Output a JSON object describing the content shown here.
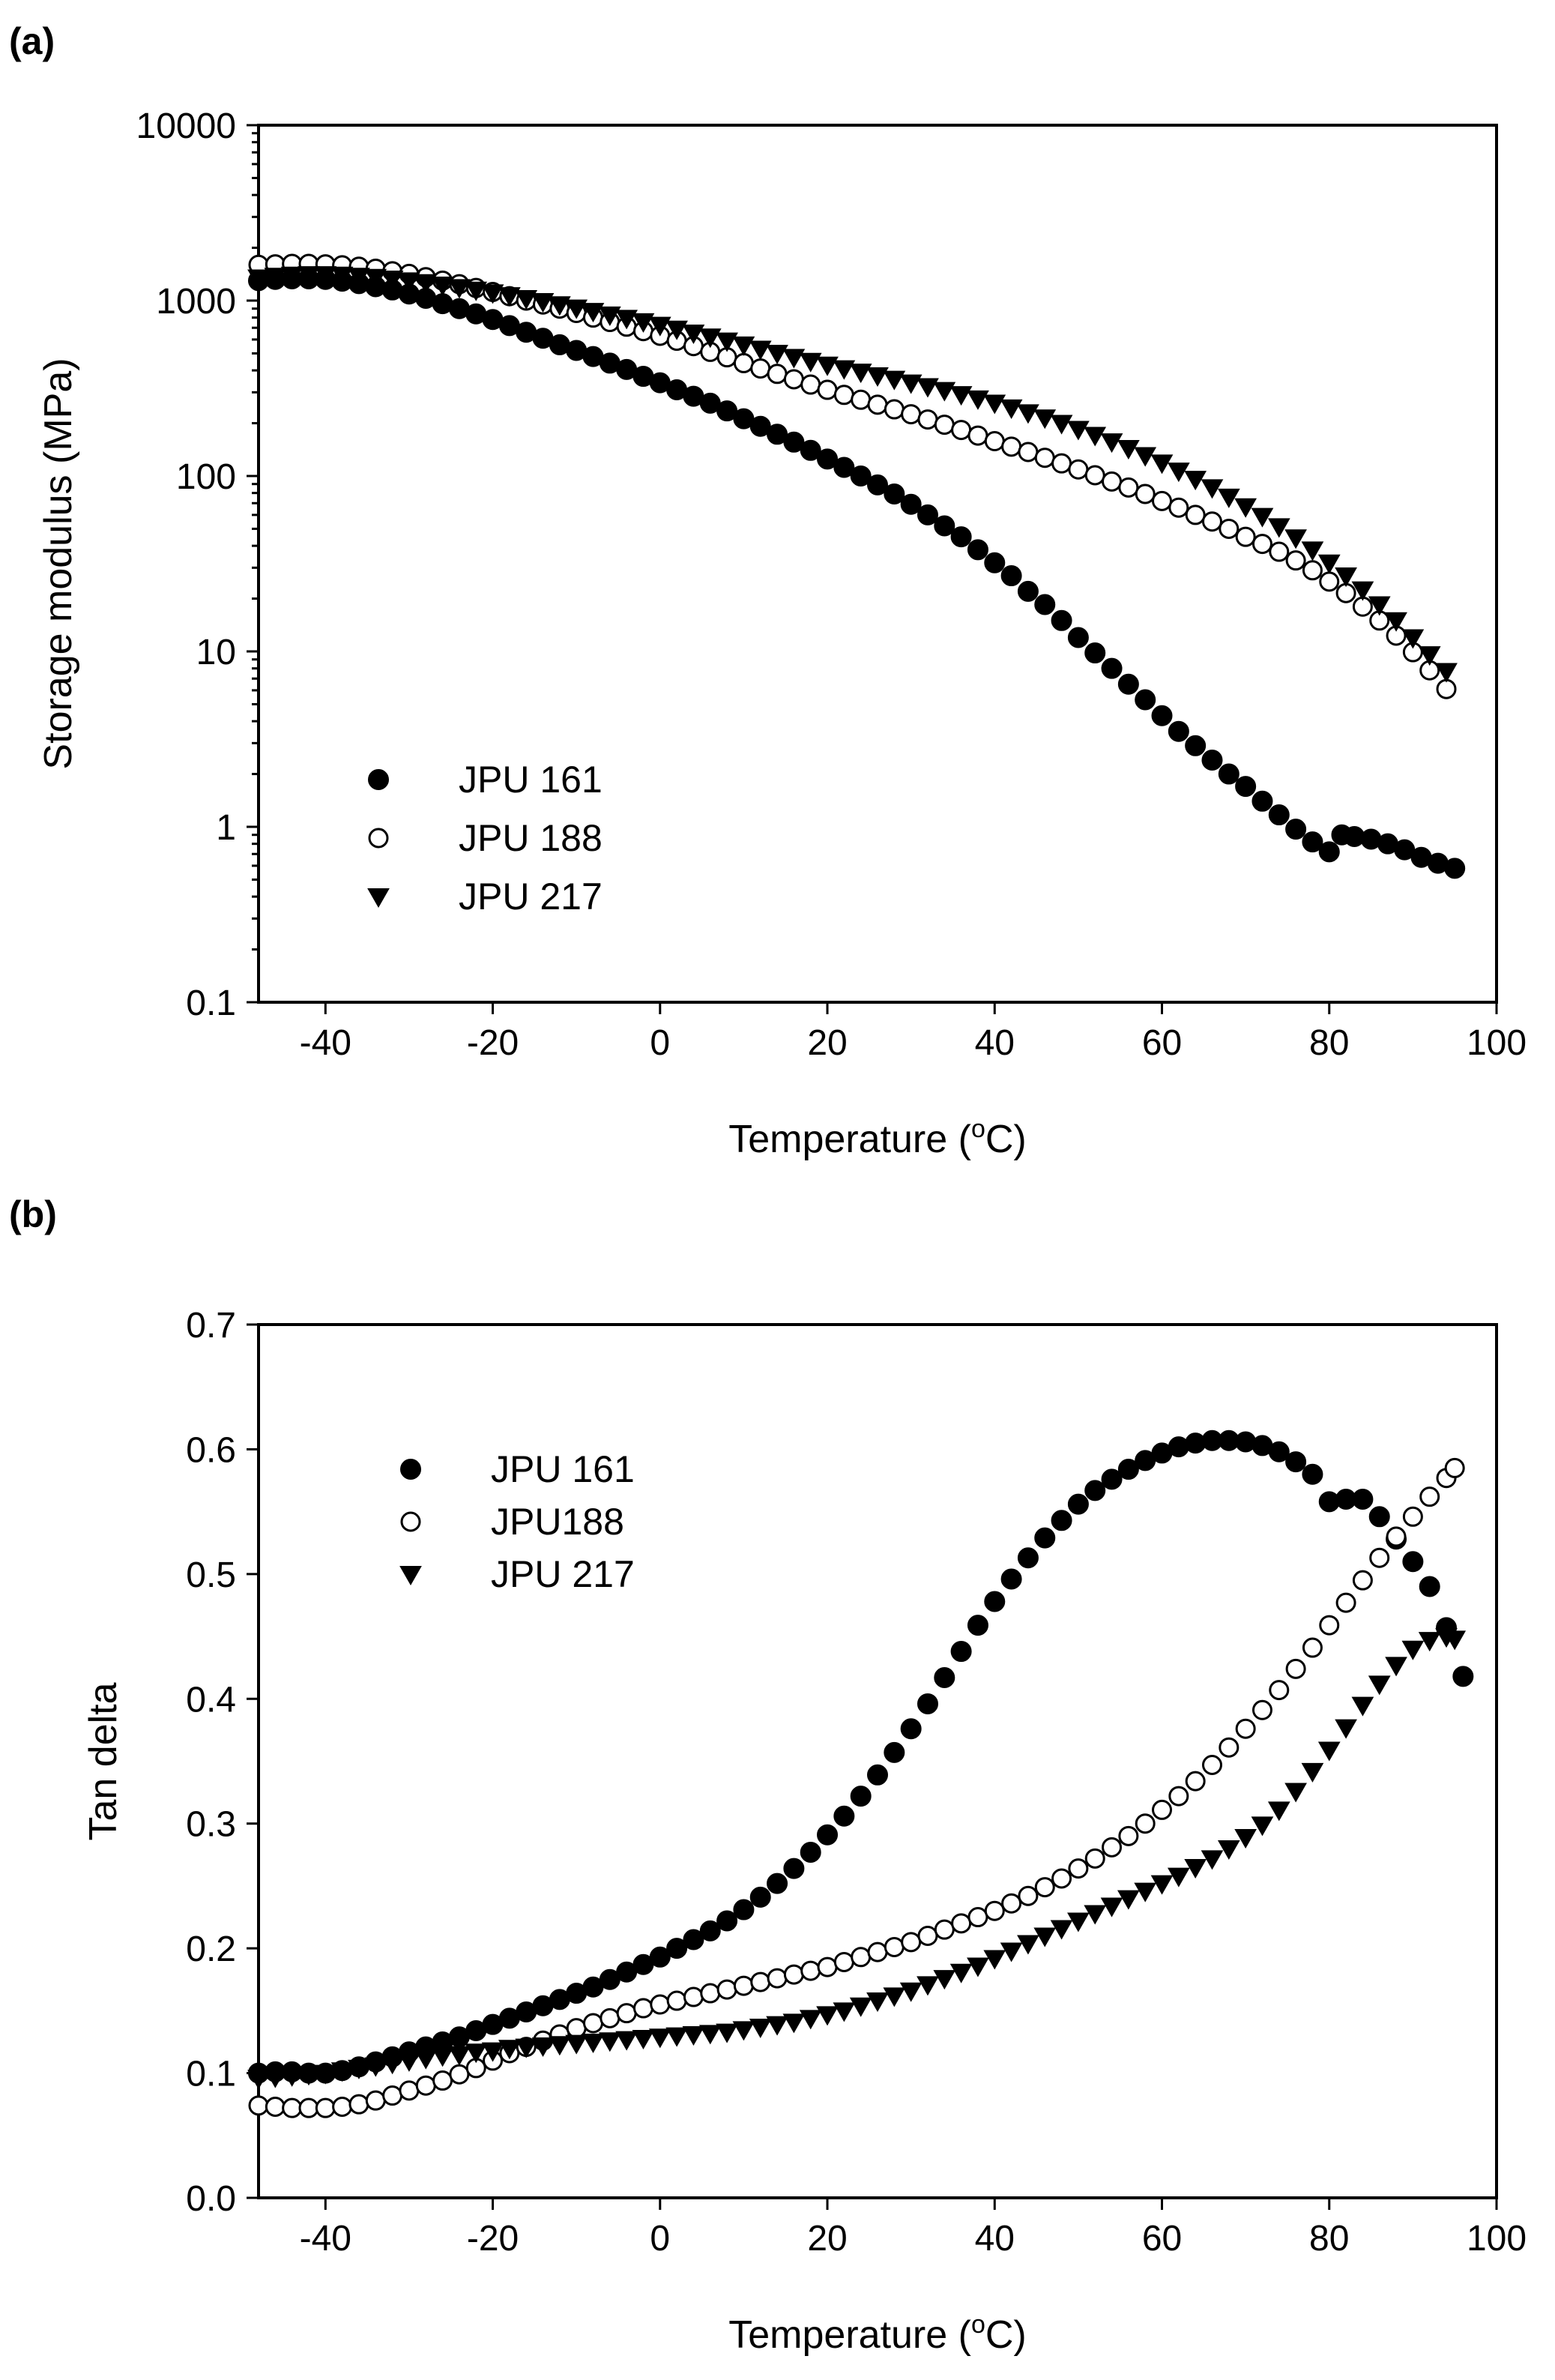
{
  "chart_data": [
    {
      "panel_label": "(a)",
      "type": "scatter",
      "title": "",
      "xlabel": "Temperature (",
      "xlabel_unit_sup": "o",
      "xlabel_unit_end": "C)",
      "ylabel": "Storage modulus (MPa)",
      "yscale": "log",
      "xlim": [
        -48,
        100
      ],
      "ylim": [
        0.1,
        10000
      ],
      "xticks": [
        -40,
        -20,
        0,
        20,
        40,
        60,
        80,
        100
      ],
      "xtick_labels": [
        "-40",
        "-20",
        "0",
        "20",
        "40",
        "60",
        "80",
        "100"
      ],
      "yticks": [
        0.1,
        1,
        10,
        100,
        1000,
        10000
      ],
      "ytick_labels": [
        "0.1",
        "1",
        "10",
        "100",
        "1000",
        "10000"
      ],
      "legend_position": "bottom-left",
      "series": [
        {
          "name": "JPU 161",
          "marker": "filled-circle",
          "x": [
            -48,
            -46,
            -44,
            -42,
            -40,
            -38,
            -36,
            -34,
            -32,
            -30,
            -28,
            -26,
            -24,
            -22,
            -20,
            -18,
            -16,
            -14,
            -12,
            -10,
            -8,
            -6,
            -4,
            -2,
            0,
            2,
            4,
            6,
            8,
            10,
            12,
            14,
            16,
            18,
            20,
            22,
            24,
            26,
            28,
            30,
            32,
            34,
            36,
            38,
            40,
            42,
            44,
            46,
            48,
            50,
            52,
            54,
            56,
            58,
            60,
            62,
            64,
            66,
            68,
            70,
            72,
            74,
            76,
            78,
            80,
            81.5,
            83,
            85,
            87,
            89,
            91,
            93,
            95
          ],
          "y": [
            1300,
            1320,
            1330,
            1330,
            1320,
            1290,
            1250,
            1200,
            1150,
            1090,
            1030,
            960,
            900,
            840,
            780,
            720,
            660,
            610,
            560,
            520,
            480,
            440,
            405,
            370,
            340,
            310,
            285,
            260,
            235,
            212,
            192,
            173,
            156,
            140,
            125,
            112,
            100,
            89,
            79,
            69,
            60,
            52,
            45,
            38,
            32,
            27,
            22,
            18.5,
            15,
            12,
            9.8,
            8.0,
            6.5,
            5.3,
            4.3,
            3.5,
            2.9,
            2.4,
            2.0,
            1.7,
            1.4,
            1.17,
            0.97,
            0.82,
            0.72,
            0.9,
            0.88,
            0.85,
            0.8,
            0.74,
            0.67,
            0.62,
            0.58
          ]
        },
        {
          "name": "JPU 188",
          "marker": "open-circle",
          "x": [
            -48,
            -46,
            -44,
            -42,
            -40,
            -38,
            -36,
            -34,
            -32,
            -30,
            -28,
            -26,
            -24,
            -22,
            -20,
            -18,
            -16,
            -14,
            -12,
            -10,
            -8,
            -6,
            -4,
            -2,
            0,
            2,
            4,
            6,
            8,
            10,
            12,
            14,
            16,
            18,
            20,
            22,
            24,
            26,
            28,
            30,
            32,
            34,
            36,
            38,
            40,
            42,
            44,
            46,
            48,
            50,
            52,
            54,
            56,
            58,
            60,
            62,
            64,
            66,
            68,
            70,
            72,
            74,
            76,
            78,
            80,
            82,
            84,
            86,
            88,
            90,
            92,
            94
          ],
          "y": [
            1600,
            1610,
            1620,
            1620,
            1610,
            1590,
            1560,
            1520,
            1470,
            1420,
            1360,
            1300,
            1240,
            1180,
            1120,
            1060,
            1000,
            950,
            900,
            850,
            800,
            755,
            710,
            670,
            630,
            590,
            550,
            510,
            475,
            440,
            410,
            382,
            356,
            332,
            310,
            290,
            272,
            255,
            240,
            225,
            210,
            196,
            183,
            170,
            158,
            147,
            137,
            127,
            118,
            109,
            101,
            93,
            86,
            79,
            72,
            66,
            60,
            55,
            50,
            45,
            41,
            37,
            33,
            29,
            25,
            21.5,
            18,
            15,
            12.3,
            9.9,
            7.8,
            6.1
          ]
        },
        {
          "name": "JPU 217",
          "marker": "filled-triangle-down",
          "x": [
            -48,
            -46,
            -44,
            -42,
            -40,
            -38,
            -36,
            -34,
            -32,
            -30,
            -28,
            -26,
            -24,
            -22,
            -20,
            -18,
            -16,
            -14,
            -12,
            -10,
            -8,
            -6,
            -4,
            -2,
            0,
            2,
            4,
            6,
            8,
            10,
            12,
            14,
            16,
            18,
            20,
            22,
            24,
            26,
            28,
            30,
            32,
            34,
            36,
            38,
            40,
            42,
            44,
            46,
            48,
            50,
            52,
            54,
            56,
            58,
            60,
            62,
            64,
            66,
            68,
            70,
            72,
            74,
            76,
            78,
            80,
            82,
            84,
            86,
            88,
            90,
            92,
            94
          ],
          "y": [
            1350,
            1380,
            1400,
            1410,
            1410,
            1400,
            1380,
            1360,
            1330,
            1300,
            1270,
            1230,
            1190,
            1150,
            1110,
            1070,
            1030,
            990,
            950,
            910,
            870,
            830,
            795,
            760,
            725,
            690,
            655,
            622,
            590,
            560,
            530,
            502,
            476,
            452,
            430,
            410,
            392,
            374,
            357,
            340,
            324,
            308,
            292,
            276,
            261,
            245,
            230,
            215,
            200,
            185,
            171,
            157,
            144,
            131,
            119,
            107,
            96,
            86,
            76,
            67,
            59,
            51.5,
            44.5,
            38,
            32,
            27,
            22.5,
            18.5,
            15,
            12,
            9.6,
            7.7
          ]
        }
      ]
    },
    {
      "panel_label": "(b)",
      "type": "scatter",
      "title": "",
      "xlabel": "Temperature (",
      "xlabel_unit_sup": "o",
      "xlabel_unit_end": "C)",
      "ylabel": "Tan delta",
      "yscale": "linear",
      "xlim": [
        -48,
        100
      ],
      "ylim": [
        0.0,
        0.7
      ],
      "xticks": [
        -40,
        -20,
        0,
        20,
        40,
        60,
        80,
        100
      ],
      "xtick_labels": [
        "-40",
        "-20",
        "0",
        "20",
        "40",
        "60",
        "80",
        "100"
      ],
      "yticks": [
        0.0,
        0.1,
        0.2,
        0.3,
        0.4,
        0.5,
        0.6,
        0.7
      ],
      "ytick_labels": [
        "0.0",
        "0.1",
        "0.2",
        "0.3",
        "0.4",
        "0.5",
        "0.6",
        "0.7"
      ],
      "legend_position": "top-left",
      "series": [
        {
          "name": "JPU 161",
          "marker": "filled-circle",
          "x": [
            -48,
            -46,
            -44,
            -42,
            -40,
            -38,
            -36,
            -34,
            -32,
            -30,
            -28,
            -26,
            -24,
            -22,
            -20,
            -18,
            -16,
            -14,
            -12,
            -10,
            -8,
            -6,
            -4,
            -2,
            0,
            2,
            4,
            6,
            8,
            10,
            12,
            14,
            16,
            18,
            20,
            22,
            24,
            26,
            28,
            30,
            32,
            34,
            36,
            38,
            40,
            42,
            44,
            46,
            48,
            50,
            52,
            54,
            56,
            58,
            60,
            62,
            64,
            66,
            68,
            70,
            72,
            74,
            76,
            78,
            80,
            82,
            84,
            86,
            88,
            90,
            92,
            94,
            96
          ],
          "y": [
            0.1,
            0.101,
            0.101,
            0.1,
            0.1,
            0.102,
            0.105,
            0.109,
            0.113,
            0.117,
            0.121,
            0.125,
            0.129,
            0.134,
            0.139,
            0.144,
            0.149,
            0.154,
            0.159,
            0.164,
            0.169,
            0.175,
            0.181,
            0.187,
            0.193,
            0.2,
            0.207,
            0.214,
            0.222,
            0.231,
            0.241,
            0.252,
            0.264,
            0.277,
            0.291,
            0.306,
            0.322,
            0.339,
            0.357,
            0.376,
            0.396,
            0.417,
            0.438,
            0.459,
            0.478,
            0.496,
            0.513,
            0.529,
            0.543,
            0.556,
            0.567,
            0.576,
            0.584,
            0.591,
            0.597,
            0.602,
            0.605,
            0.607,
            0.607,
            0.606,
            0.603,
            0.598,
            0.59,
            0.58,
            0.558,
            0.56,
            0.56,
            0.546,
            0.528,
            0.51,
            0.49,
            0.457,
            0.418
          ]
        },
        {
          "name": "JPU188",
          "marker": "open-circle",
          "x": [
            -48,
            -46,
            -44,
            -42,
            -40,
            -38,
            -36,
            -34,
            -32,
            -30,
            -28,
            -26,
            -24,
            -22,
            -20,
            -18,
            -16,
            -14,
            -12,
            -10,
            -8,
            -6,
            -4,
            -2,
            0,
            2,
            4,
            6,
            8,
            10,
            12,
            14,
            16,
            18,
            20,
            22,
            24,
            26,
            28,
            30,
            32,
            34,
            36,
            38,
            40,
            42,
            44,
            46,
            48,
            50,
            52,
            54,
            56,
            58,
            60,
            62,
            64,
            66,
            68,
            70,
            72,
            74,
            76,
            78,
            80,
            82,
            84,
            86,
            88,
            90,
            92,
            94,
            95
          ],
          "y": [
            0.074,
            0.073,
            0.072,
            0.072,
            0.072,
            0.073,
            0.075,
            0.078,
            0.082,
            0.086,
            0.09,
            0.094,
            0.099,
            0.104,
            0.11,
            0.116,
            0.121,
            0.126,
            0.131,
            0.136,
            0.14,
            0.144,
            0.148,
            0.152,
            0.155,
            0.158,
            0.161,
            0.164,
            0.167,
            0.17,
            0.173,
            0.176,
            0.179,
            0.182,
            0.185,
            0.189,
            0.193,
            0.197,
            0.201,
            0.205,
            0.21,
            0.215,
            0.22,
            0.225,
            0.23,
            0.236,
            0.242,
            0.249,
            0.256,
            0.264,
            0.272,
            0.281,
            0.29,
            0.3,
            0.311,
            0.322,
            0.334,
            0.347,
            0.361,
            0.376,
            0.391,
            0.407,
            0.424,
            0.441,
            0.459,
            0.477,
            0.495,
            0.513,
            0.53,
            0.546,
            0.562,
            0.577,
            0.585
          ]
        },
        {
          "name": "JPU 217",
          "marker": "filled-triangle-down",
          "x": [
            -48,
            -46,
            -44,
            -42,
            -40,
            -38,
            -36,
            -34,
            -32,
            -30,
            -28,
            -26,
            -24,
            -22,
            -20,
            -18,
            -16,
            -14,
            -12,
            -10,
            -8,
            -6,
            -4,
            -2,
            0,
            2,
            4,
            6,
            8,
            10,
            12,
            14,
            16,
            18,
            20,
            22,
            24,
            26,
            28,
            30,
            32,
            34,
            36,
            38,
            40,
            42,
            44,
            46,
            48,
            50,
            52,
            54,
            56,
            58,
            60,
            62,
            64,
            66,
            68,
            70,
            72,
            74,
            76,
            78,
            80,
            82,
            84,
            86,
            88,
            90,
            92,
            94,
            95
          ],
          "y": [
            0.096,
            0.097,
            0.098,
            0.099,
            0.1,
            0.102,
            0.104,
            0.106,
            0.108,
            0.11,
            0.112,
            0.114,
            0.115,
            0.117,
            0.118,
            0.12,
            0.121,
            0.122,
            0.123,
            0.124,
            0.125,
            0.126,
            0.127,
            0.128,
            0.129,
            0.13,
            0.131,
            0.132,
            0.133,
            0.135,
            0.137,
            0.139,
            0.141,
            0.144,
            0.147,
            0.15,
            0.154,
            0.158,
            0.162,
            0.166,
            0.171,
            0.176,
            0.181,
            0.186,
            0.192,
            0.198,
            0.204,
            0.21,
            0.216,
            0.222,
            0.228,
            0.234,
            0.24,
            0.246,
            0.252,
            0.258,
            0.265,
            0.272,
            0.28,
            0.289,
            0.299,
            0.311,
            0.326,
            0.342,
            0.359,
            0.377,
            0.395,
            0.412,
            0.427,
            0.44,
            0.447,
            0.45,
            0.448
          ]
        }
      ]
    }
  ]
}
